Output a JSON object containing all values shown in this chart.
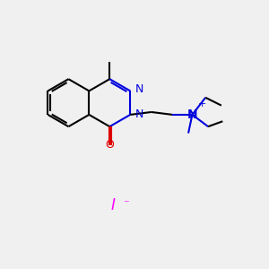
{
  "background_color": "#f0f0f0",
  "bond_color": "#000000",
  "nitrogen_color": "#0000dd",
  "oxygen_color": "#dd0000",
  "iodide_color": "#ff00ff",
  "line_width": 1.5,
  "figsize": [
    3.0,
    3.0
  ],
  "dpi": 100,
  "xlim": [
    0,
    10
  ],
  "ylim": [
    0,
    10
  ]
}
